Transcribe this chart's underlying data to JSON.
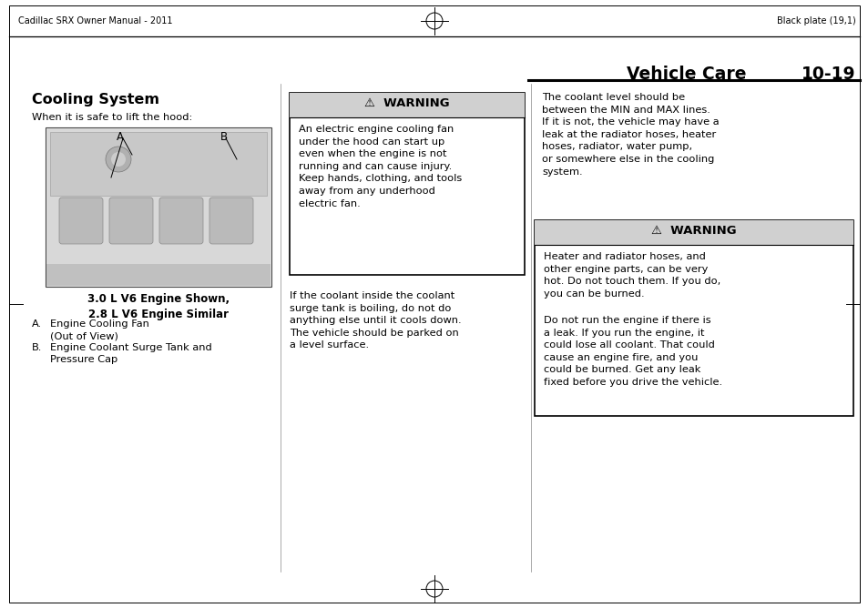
{
  "bg_color": "#ffffff",
  "page_width": 9.54,
  "page_height": 6.68,
  "header_left_text": "Cadillac SRX Owner Manual - 2011",
  "header_right_text": "Black plate (19,1)",
  "section_title": "Vehicle Care",
  "page_number": "10-19",
  "section_heading": "Cooling System",
  "intro_text": "When it is safe to lift the hood:",
  "caption_bold": "3.0 L V6 Engine Shown,\n2.8 L V6 Engine Similar",
  "label_a_prefix": "A.",
  "label_a_text": "Engine Cooling Fan\n(Out of View)",
  "label_b_prefix": "B.",
  "label_b_text": "Engine Coolant Surge Tank and\nPressure Cap",
  "warning1_title": "⚠  WARNING",
  "warning1_text": "An electric engine cooling fan\nunder the hood can start up\neven when the engine is not\nrunning and can cause injury.\nKeep hands, clothing, and tools\naway from any underhood\nelectric fan.",
  "middle_para": "If the coolant inside the coolant\nsurge tank is boiling, do not do\nanything else until it cools down.\nThe vehicle should be parked on\na level surface.",
  "right_para": "The coolant level should be\nbetween the MIN and MAX lines.\nIf it is not, the vehicle may have a\nleak at the radiator hoses, heater\nhoses, radiator, water pump,\nor somewhere else in the cooling\nsystem.",
  "warning2_title": "⚠  WARNING",
  "warning2_text1": "Heater and radiator hoses, and\nother engine parts, can be very\nhot. Do not touch them. If you do,\nyou can be burned.",
  "warning2_text2": "Do not run the engine if there is\na leak. If you run the engine, it\ncould lose all coolant. That could\ncause an engine fire, and you\ncould be burned. Get any leak\nfixed before you drive the vehicle.",
  "warning_bg": "#d0d0d0",
  "warning_border": "#000000",
  "text_color": "#000000",
  "font_size_header": 7.0,
  "font_size_body": 8.2,
  "font_size_section": 11.5,
  "font_size_caption": 8.5,
  "font_size_title": 13.5
}
